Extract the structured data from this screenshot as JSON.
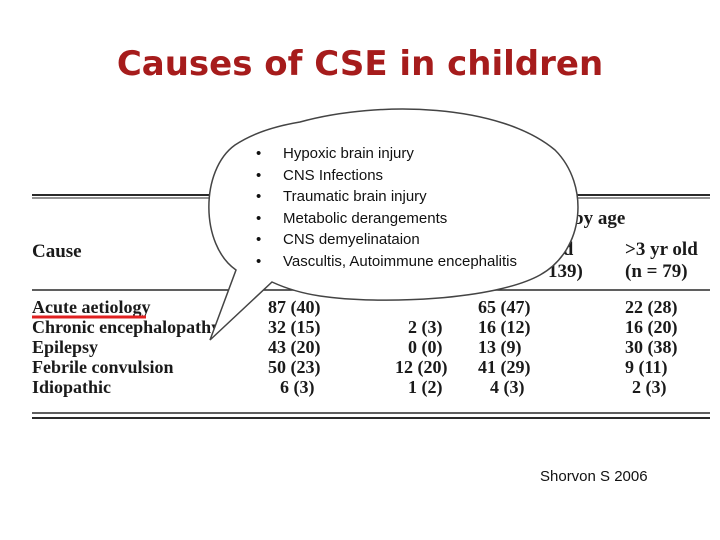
{
  "slide": {
    "title": "Causes of CSE in children",
    "citation": "Shorvon S 2006"
  },
  "callout": {
    "items": [
      "Hypoxic brain injury",
      "CNS Infections",
      "Traumatic brain injury",
      "Metabolic derangements",
      "CNS demyelinataion",
      "Vascultis, Autoimmune encephalitis"
    ]
  },
  "table": {
    "header_cause": "Cause",
    "header_by_age": "by age",
    "header_col3": "old",
    "header_col3_n": "139)",
    "header_col4": ">3 yr old",
    "header_col4_n": "(n = 79)",
    "rows": [
      {
        "cause": "Acute aetiology",
        "total": "87 (40)",
        "c2": "",
        "c3": "65 (47)",
        "c4": "22 (28)"
      },
      {
        "cause": "Chronic encephalopathy",
        "total": "32 (15)",
        "c2": "2 (3)",
        "c3": "16 (12)",
        "c4": "16 (20)"
      },
      {
        "cause": "Epilepsy",
        "total": "43 (20)",
        "c2": "0 (0)",
        "c3": "13 (9)",
        "c4": "30 (38)"
      },
      {
        "cause": "Febrile convulsion",
        "total": "50 (23)",
        "c2": "12 (20)",
        "c3": "41 (29)",
        "c4": "9 (11)"
      },
      {
        "cause": "Idiopathic",
        "total": "6 (3)",
        "c2": "1 (2)",
        "c3": "4 (3)",
        "c4": "2 (3)"
      }
    ]
  },
  "colors": {
    "title": "#a61c1c",
    "underline": "#e02020"
  }
}
